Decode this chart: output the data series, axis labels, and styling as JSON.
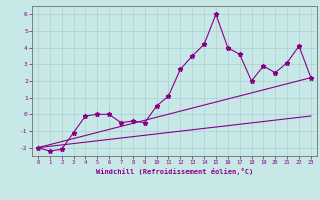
{
  "xlabel": "Windchill (Refroidissement éolien,°C)",
  "ylabel": "",
  "x": [
    0,
    1,
    2,
    3,
    4,
    5,
    6,
    7,
    8,
    9,
    10,
    11,
    12,
    13,
    14,
    15,
    16,
    17,
    18,
    19,
    20,
    21,
    22,
    23
  ],
  "line1": [
    -2.0,
    -2.2,
    -2.1,
    -1.1,
    -0.1,
    0.0,
    0.0,
    -0.5,
    -0.4,
    -0.5,
    0.5,
    1.1,
    2.7,
    3.5,
    4.2,
    6.0,
    4.0,
    3.6,
    2.0,
    2.9,
    2.5,
    3.1,
    4.1,
    2.2
  ],
  "line2_x": [
    0,
    23
  ],
  "line2_y": [
    -2.0,
    -0.1
  ],
  "line3_x": [
    0,
    23
  ],
  "line3_y": [
    -2.0,
    2.2
  ],
  "ylim": [
    -2.5,
    6.5
  ],
  "xlim": [
    -0.5,
    23.5
  ],
  "yticks": [
    -2,
    -1,
    0,
    1,
    2,
    3,
    4,
    5,
    6
  ],
  "xticks": [
    0,
    1,
    2,
    3,
    4,
    5,
    6,
    7,
    8,
    9,
    10,
    11,
    12,
    13,
    14,
    15,
    16,
    17,
    18,
    19,
    20,
    21,
    22,
    23
  ],
  "line_color": "#880088",
  "bg_color": "#c8e8e8",
  "grid_color": "#a8d0d0"
}
